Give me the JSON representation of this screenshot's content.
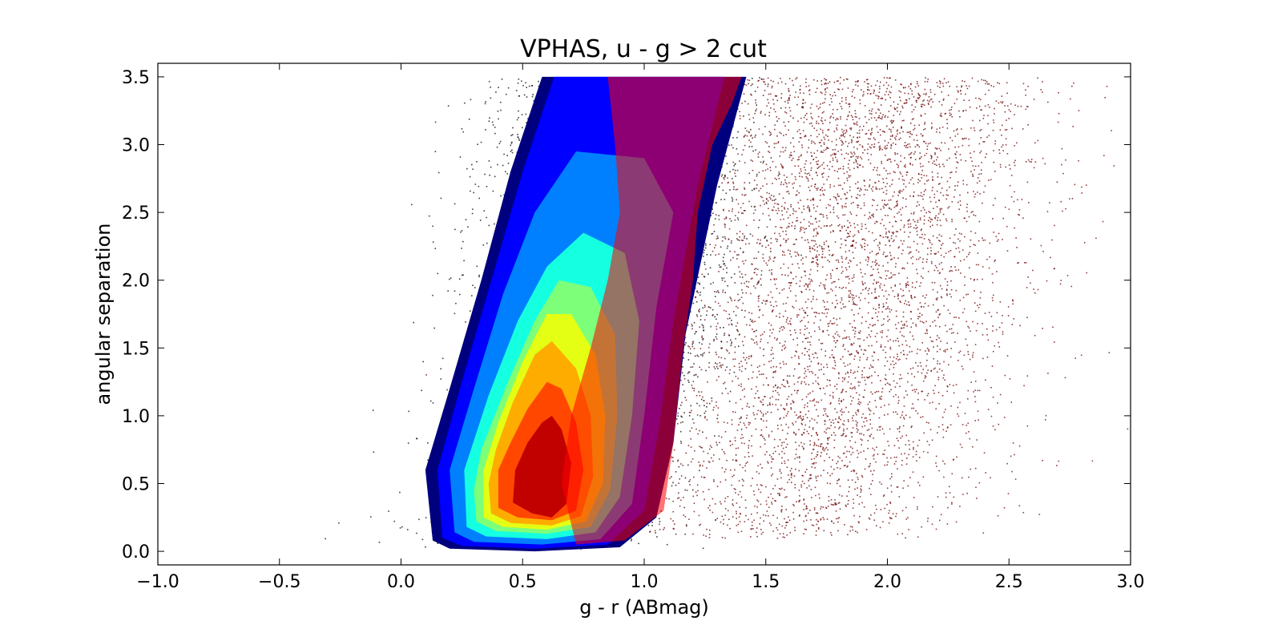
{
  "chart_data": {
    "type": "scatter",
    "title": "VPHAS, u - g > 2 cut",
    "xlabel": "g - r (ABmag)",
    "ylabel": "angular separation",
    "xlim": [
      -1.0,
      3.0
    ],
    "ylim": [
      -0.1,
      3.6
    ],
    "xticks": [
      "−1.0",
      "−0.5",
      "0.0",
      "0.5",
      "1.0",
      "1.5",
      "2.0",
      "2.5",
      "3.0"
    ],
    "xtick_values": [
      -1.0,
      -0.5,
      0.0,
      0.5,
      1.0,
      1.5,
      2.0,
      2.5,
      3.0
    ],
    "yticks": [
      "0.0",
      "0.5",
      "1.0",
      "1.5",
      "2.0",
      "2.5",
      "3.0",
      "3.5"
    ],
    "ytick_values": [
      0.0,
      0.5,
      1.0,
      1.5,
      2.0,
      2.5,
      3.0,
      3.5
    ],
    "grid": false,
    "layers": [
      {
        "kind": "scatter-points",
        "color": "#000000",
        "center_curve": [
          [
            0.0,
            0.55
          ],
          [
            0.5,
            0.62
          ],
          [
            1.0,
            0.73
          ],
          [
            2.0,
            0.84
          ],
          [
            3.5,
            0.94
          ]
        ],
        "x_spread": 0.28,
        "y_range": [
          0.02,
          3.5
        ],
        "count": 6000
      },
      {
        "kind": "scatter-points",
        "color": "#6b0000",
        "center_curve": [
          [
            0.0,
            1.5
          ],
          [
            0.5,
            1.65
          ],
          [
            1.0,
            1.75
          ],
          [
            2.0,
            1.85
          ],
          [
            3.5,
            1.95
          ]
        ],
        "x_spread": 0.35,
        "y_range": [
          0.1,
          3.5
        ],
        "count": 5000
      },
      {
        "kind": "contour-filled",
        "colormap": "jet",
        "levels": [
          {
            "color": "#00007f",
            "polygon": [
              [
                0.13,
                0.08
              ],
              [
                0.2,
                0.02
              ],
              [
                0.55,
                0.0
              ],
              [
                0.9,
                0.03
              ],
              [
                1.05,
                0.25
              ],
              [
                1.12,
                0.8
              ],
              [
                1.17,
                1.6
              ],
              [
                1.3,
                2.7
              ],
              [
                1.42,
                3.5
              ],
              [
                0.58,
                3.5
              ],
              [
                0.45,
                2.8
              ],
              [
                0.33,
                2.0
              ],
              [
                0.2,
                1.2
              ],
              [
                0.1,
                0.6
              ]
            ]
          },
          {
            "color": "#0000ff",
            "polygon": [
              [
                0.17,
                0.1
              ],
              [
                0.25,
                0.04
              ],
              [
                0.55,
                0.02
              ],
              [
                0.85,
                0.05
              ],
              [
                1.0,
                0.3
              ],
              [
                1.06,
                0.9
              ],
              [
                1.12,
                1.7
              ],
              [
                1.22,
                2.7
              ],
              [
                1.33,
                3.5
              ],
              [
                0.63,
                3.5
              ],
              [
                0.5,
                2.8
              ],
              [
                0.38,
                2.05
              ],
              [
                0.25,
                1.25
              ],
              [
                0.15,
                0.6
              ]
            ]
          },
          {
            "color": "#0080ff",
            "polygon": [
              [
                0.22,
                0.14
              ],
              [
                0.3,
                0.07
              ],
              [
                0.58,
                0.05
              ],
              [
                0.82,
                0.09
              ],
              [
                0.95,
                0.35
              ],
              [
                1.0,
                1.0
              ],
              [
                1.05,
                1.8
              ],
              [
                1.12,
                2.5
              ],
              [
                1.0,
                2.9
              ],
              [
                0.72,
                2.95
              ],
              [
                0.55,
                2.5
              ],
              [
                0.42,
                1.9
              ],
              [
                0.3,
                1.2
              ],
              [
                0.2,
                0.6
              ]
            ]
          },
          {
            "color": "#15ffe1",
            "polygon": [
              [
                0.27,
                0.18
              ],
              [
                0.35,
                0.11
              ],
              [
                0.6,
                0.09
              ],
              [
                0.8,
                0.14
              ],
              [
                0.9,
                0.4
              ],
              [
                0.95,
                1.0
              ],
              [
                0.98,
                1.7
              ],
              [
                0.92,
                2.2
              ],
              [
                0.75,
                2.35
              ],
              [
                0.6,
                2.1
              ],
              [
                0.48,
                1.7
              ],
              [
                0.36,
                1.15
              ],
              [
                0.26,
                0.6
              ]
            ]
          },
          {
            "color": "#7dff7a",
            "polygon": [
              [
                0.31,
                0.22
              ],
              [
                0.39,
                0.15
              ],
              [
                0.6,
                0.13
              ],
              [
                0.78,
                0.18
              ],
              [
                0.86,
                0.45
              ],
              [
                0.89,
                1.0
              ],
              [
                0.88,
                1.6
              ],
              [
                0.78,
                1.95
              ],
              [
                0.65,
                2.0
              ],
              [
                0.55,
                1.7
              ],
              [
                0.44,
                1.25
              ],
              [
                0.33,
                0.75
              ],
              [
                0.3,
                0.45
              ]
            ]
          },
          {
            "color": "#e4ff13",
            "polygon": [
              [
                0.34,
                0.25
              ],
              [
                0.42,
                0.18
              ],
              [
                0.6,
                0.16
              ],
              [
                0.76,
                0.22
              ],
              [
                0.83,
                0.5
              ],
              [
                0.84,
                1.0
              ],
              [
                0.8,
                1.45
              ],
              [
                0.7,
                1.75
              ],
              [
                0.6,
                1.75
              ],
              [
                0.5,
                1.4
              ],
              [
                0.4,
                0.95
              ],
              [
                0.34,
                0.6
              ]
            ]
          },
          {
            "color": "#ffac00",
            "polygon": [
              [
                0.37,
                0.28
              ],
              [
                0.45,
                0.21
              ],
              [
                0.62,
                0.19
              ],
              [
                0.74,
                0.26
              ],
              [
                0.79,
                0.55
              ],
              [
                0.78,
                1.0
              ],
              [
                0.72,
                1.35
              ],
              [
                0.62,
                1.55
              ],
              [
                0.55,
                1.45
              ],
              [
                0.46,
                1.1
              ],
              [
                0.39,
                0.75
              ],
              [
                0.36,
                0.5
              ]
            ]
          },
          {
            "color": "#ff4700",
            "polygon": [
              [
                0.4,
                0.32
              ],
              [
                0.48,
                0.25
              ],
              [
                0.62,
                0.23
              ],
              [
                0.72,
                0.3
              ],
              [
                0.75,
                0.6
              ],
              [
                0.72,
                0.95
              ],
              [
                0.66,
                1.2
              ],
              [
                0.6,
                1.25
              ],
              [
                0.52,
                1.05
              ],
              [
                0.45,
                0.8
              ],
              [
                0.4,
                0.6
              ]
            ]
          },
          {
            "color": "#c10000",
            "polygon": [
              [
                0.46,
                0.36
              ],
              [
                0.54,
                0.28
              ],
              [
                0.62,
                0.25
              ],
              [
                0.68,
                0.35
              ],
              [
                0.7,
                0.65
              ],
              [
                0.66,
                0.9
              ],
              [
                0.62,
                1.0
              ],
              [
                0.58,
                0.95
              ],
              [
                0.52,
                0.8
              ],
              [
                0.47,
                0.6
              ]
            ]
          }
        ]
      },
      {
        "kind": "filled-band",
        "color": "#ff0000",
        "polygon": [
          [
            0.72,
            0.05
          ],
          [
            0.92,
            0.08
          ],
          [
            1.08,
            0.3
          ],
          [
            1.12,
            0.8
          ],
          [
            1.16,
            1.5
          ],
          [
            1.2,
            2.0
          ],
          [
            1.22,
            2.5
          ],
          [
            1.28,
            3.0
          ],
          [
            1.36,
            3.3
          ],
          [
            1.4,
            3.5
          ],
          [
            0.85,
            3.5
          ],
          [
            0.88,
            3.0
          ],
          [
            0.9,
            2.5
          ],
          [
            0.85,
            2.0
          ],
          [
            0.78,
            1.5
          ],
          [
            0.7,
            1.0
          ],
          [
            0.66,
            0.5
          ]
        ]
      }
    ]
  }
}
